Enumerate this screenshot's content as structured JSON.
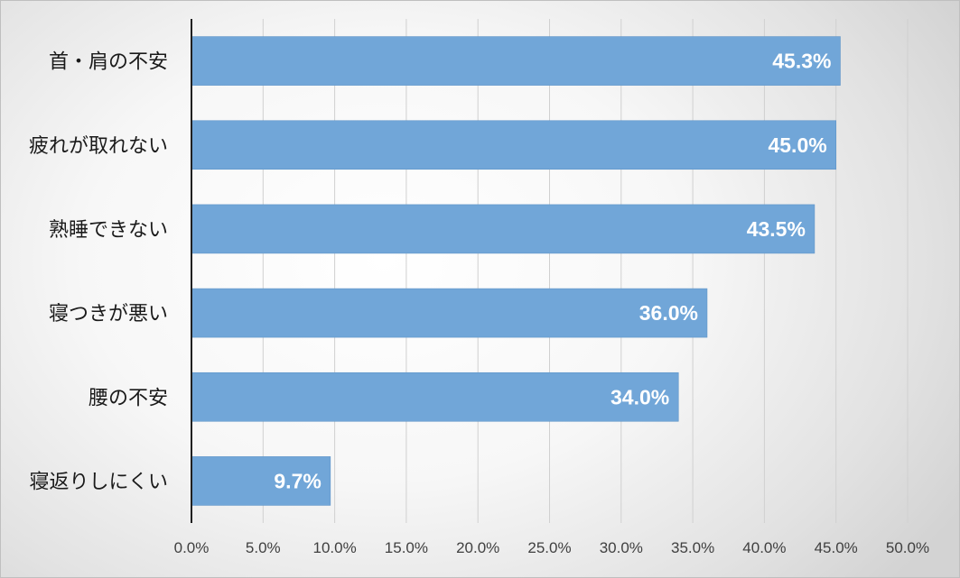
{
  "chart_data": {
    "type": "bar",
    "orientation": "horizontal",
    "categories": [
      "首・肩の不安",
      "疲れが取れない",
      "熟睡できない",
      "寝つきが悪い",
      "腰の不安",
      "寝返りしにくい"
    ],
    "values": [
      45.3,
      45.0,
      43.5,
      36.0,
      34.0,
      9.7
    ],
    "data_labels": [
      "45.3%",
      "45.0%",
      "43.5%",
      "36.0%",
      "34.0%",
      "9.7%"
    ],
    "xlim": [
      0,
      50
    ],
    "xticks": [
      0,
      5,
      10,
      15,
      20,
      25,
      30,
      35,
      40,
      45,
      50
    ],
    "xtick_labels": [
      "0.0%",
      "5.0%",
      "10.0%",
      "15.0%",
      "20.0%",
      "25.0%",
      "30.0%",
      "35.0%",
      "40.0%",
      "45.0%",
      "50.0%"
    ],
    "title": "",
    "xlabel": "",
    "ylabel": "",
    "grid": "vertical",
    "legend": "none",
    "colors": {
      "bar": "#71a6d8",
      "bar_edge": "#5e94c8",
      "gridline": "#d0d0d0",
      "axis": "#202020"
    }
  }
}
